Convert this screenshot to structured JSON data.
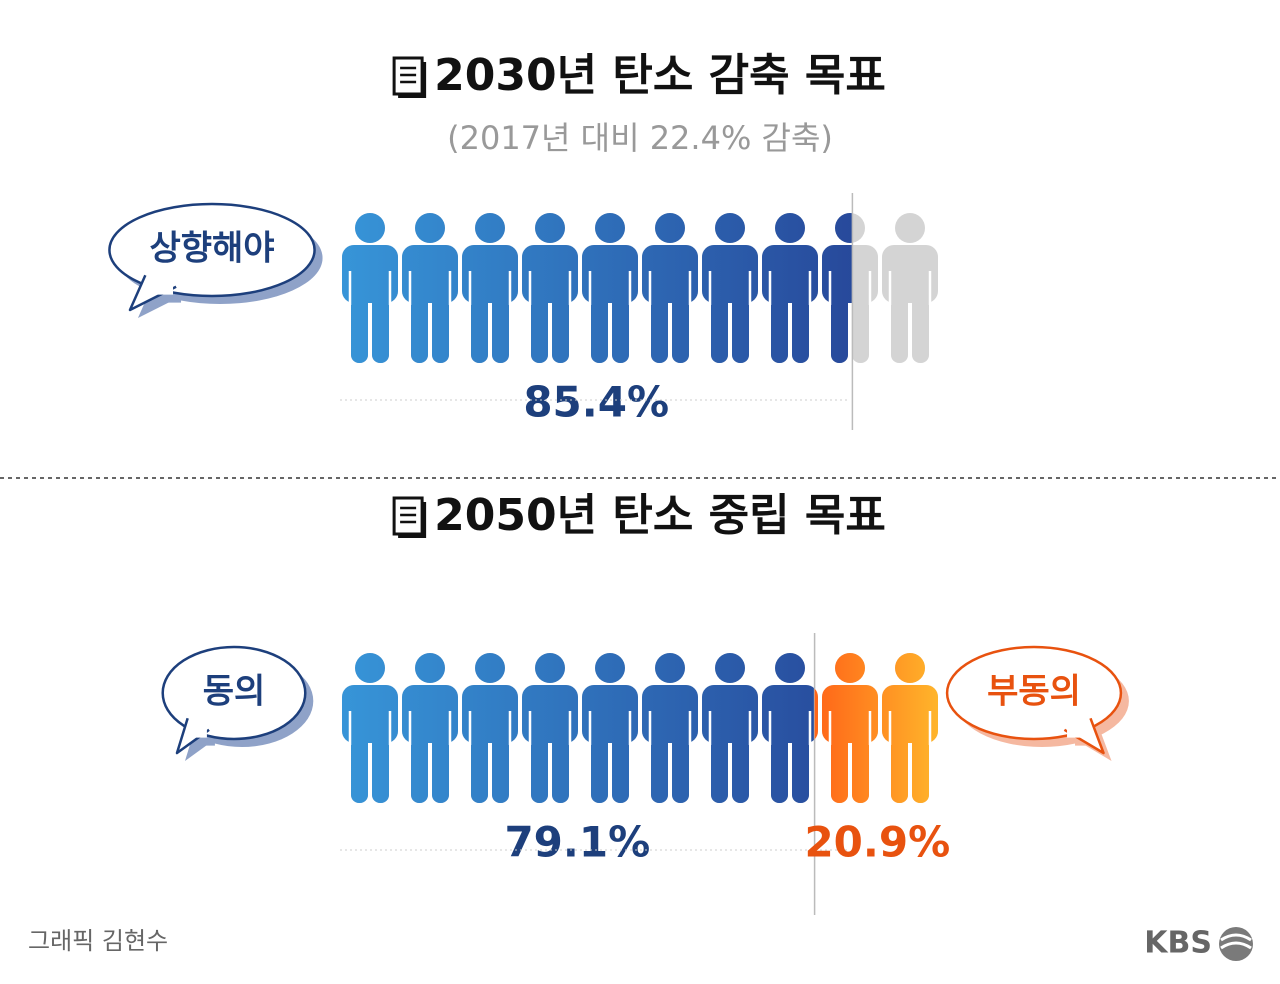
{
  "chart_data": [
    {
      "type": "pictogram",
      "title": "2030년 탄소 감축 목표",
      "subtitle": "(2017년 대비 22.4% 감축)",
      "xlim": [
        0,
        100
      ],
      "series": [
        {
          "name": "상향해야",
          "color": "#2f7fcf",
          "values": [
            85.4
          ],
          "value_labels": [
            "85.4%"
          ]
        }
      ]
    },
    {
      "type": "pictogram",
      "title": "2050년 탄소 중립 목표",
      "xlim": [
        0,
        100
      ],
      "series": [
        {
          "name": "동의",
          "color": "#2f7fcf",
          "values": [
            79.1
          ],
          "value_labels": [
            "79.1%"
          ]
        },
        {
          "name": "부동의",
          "color": "#ff7a1a",
          "values": [
            20.9
          ],
          "value_labels": [
            "20.9%"
          ]
        }
      ]
    }
  ],
  "credit": "그래픽 김현수",
  "logo": "KBS"
}
